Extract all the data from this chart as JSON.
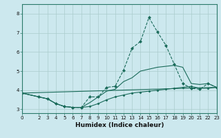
{
  "title": "",
  "xlabel": "Humidex (Indice chaleur)",
  "bg_color": "#cce8ee",
  "grid_color": "#aacccc",
  "line_color": "#1a6b5a",
  "xlim": [
    0,
    23
  ],
  "ylim": [
    2.8,
    8.5
  ],
  "xticks": [
    0,
    2,
    3,
    4,
    5,
    6,
    7,
    8,
    9,
    10,
    11,
    12,
    13,
    14,
    15,
    16,
    17,
    18,
    19,
    20,
    21,
    22,
    23
  ],
  "yticks": [
    3,
    4,
    5,
    6,
    7,
    8
  ],
  "lines": [
    {
      "x": [
        0,
        2,
        3,
        4,
        5,
        6,
        7,
        8,
        9,
        10,
        11,
        12,
        13,
        14,
        15,
        16,
        17,
        18,
        19,
        20,
        21,
        22,
        23
      ],
      "y": [
        3.85,
        3.65,
        3.55,
        3.3,
        3.15,
        3.1,
        3.1,
        3.65,
        3.65,
        4.15,
        4.2,
        5.05,
        6.2,
        6.55,
        7.8,
        7.05,
        6.35,
        5.35,
        4.35,
        4.1,
        4.05,
        4.35,
        4.15
      ],
      "marker": "D",
      "markersize": 2,
      "linestyle": "--",
      "linewidth": 0.8
    },
    {
      "x": [
        0,
        23
      ],
      "y": [
        3.85,
        4.15
      ],
      "marker": null,
      "markersize": 0,
      "linestyle": "-",
      "linewidth": 0.8
    },
    {
      "x": [
        0,
        2,
        3,
        4,
        5,
        6,
        7,
        8,
        9,
        10,
        11,
        12,
        13,
        14,
        15,
        16,
        17,
        18,
        19,
        20,
        21,
        22,
        23
      ],
      "y": [
        3.85,
        3.65,
        3.55,
        3.3,
        3.15,
        3.1,
        3.1,
        3.35,
        3.65,
        3.95,
        4.05,
        4.45,
        4.65,
        5.0,
        5.1,
        5.2,
        5.25,
        5.3,
        5.2,
        4.35,
        4.3,
        4.35,
        4.15
      ],
      "marker": null,
      "markersize": 0,
      "linestyle": "-",
      "linewidth": 0.8
    },
    {
      "x": [
        0,
        2,
        3,
        4,
        5,
        6,
        7,
        8,
        9,
        10,
        11,
        12,
        13,
        14,
        15,
        16,
        17,
        18,
        19,
        20,
        21,
        22,
        23
      ],
      "y": [
        3.85,
        3.65,
        3.55,
        3.3,
        3.15,
        3.1,
        3.1,
        3.15,
        3.3,
        3.5,
        3.65,
        3.75,
        3.85,
        3.9,
        3.95,
        4.0,
        4.05,
        4.1,
        4.15,
        4.2,
        4.1,
        4.1,
        4.15
      ],
      "marker": "D",
      "markersize": 1.5,
      "linestyle": "-",
      "linewidth": 0.8
    }
  ]
}
